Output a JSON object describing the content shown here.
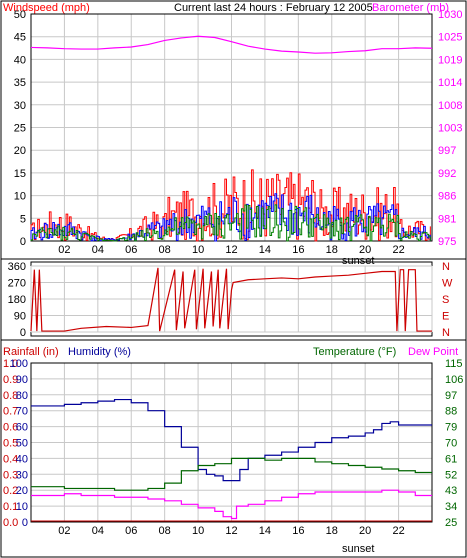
{
  "colors": {
    "frame": "#000000",
    "grid": "#c8c8c8",
    "background": "#ffffff",
    "wind_gust": "#ff0000",
    "wind_speed": "#0000ff",
    "wind_avg": "#008000",
    "barometer": "#ff00ff",
    "direction": "#cc0000",
    "rainfall": "#cc0000",
    "humidity": "#000099",
    "temperature": "#006600",
    "dew_point": "#ff00ff",
    "tick_label": "#000000"
  },
  "chart_data": [
    {
      "type": "line",
      "panel": "wind-barometer",
      "title": "Current last 24 hours : February 12 2005",
      "ylabel_left": "Windspeed (mph)",
      "ylabel_right": "Barometer (mb)",
      "x_ticks": [
        "02",
        "04",
        "06",
        "08",
        "10",
        "12",
        "14",
        "16",
        "18",
        "20",
        "22"
      ],
      "x_marker": "sunset",
      "y_left_ticks": [
        "0",
        "5",
        "10",
        "15",
        "20",
        "25",
        "30",
        "35",
        "40",
        "45",
        "50"
      ],
      "y_right_ticks": [
        "975",
        "981",
        "986",
        "992",
        "997",
        "1003",
        "1008",
        "1014",
        "1019",
        "1025",
        "1030"
      ],
      "ylim_left": [
        0,
        50
      ],
      "ylim_right": [
        975,
        1030
      ],
      "grid": true,
      "series": [
        {
          "values": [
            {
              "x": 0,
              "y": 1021.9
            },
            {
              "x": 1,
              "y": 1021.8
            },
            {
              "x": 2,
              "y": 1021.6
            },
            {
              "x": 3,
              "y": 1021.5
            },
            {
              "x": 4,
              "y": 1021.5
            },
            {
              "x": 5,
              "y": 1021.8
            },
            {
              "x": 6,
              "y": 1022.0
            },
            {
              "x": 7,
              "y": 1022.6
            },
            {
              "x": 8,
              "y": 1023.6
            },
            {
              "x": 9,
              "y": 1024.2
            },
            {
              "x": 10,
              "y": 1024.6
            },
            {
              "x": 11,
              "y": 1024.3
            },
            {
              "x": 12,
              "y": 1023.3
            },
            {
              "x": 13,
              "y": 1022.2
            },
            {
              "x": 14,
              "y": 1021.5
            },
            {
              "x": 15,
              "y": 1021.0
            },
            {
              "x": 16,
              "y": 1020.8
            },
            {
              "x": 17,
              "y": 1020.5
            },
            {
              "x": 18,
              "y": 1020.6
            },
            {
              "x": 19,
              "y": 1020.9
            },
            {
              "x": 20,
              "y": 1021.1
            },
            {
              "x": 21,
              "y": 1021.6
            },
            {
              "x": 22,
              "y": 1021.6
            },
            {
              "x": 23,
              "y": 1021.8
            },
            {
              "x": 24,
              "y": 1021.7
            }
          ]
        }
      ]
    },
    {
      "type": "line",
      "panel": "wind-direction",
      "y_left_ticks": [
        "0",
        "90",
        "180",
        "270",
        "360"
      ],
      "y_right_ticks": [
        "N",
        "E",
        "S",
        "W",
        "N"
      ],
      "ylim": [
        0,
        360
      ],
      "series": [
        {
          "values": [
            {
              "x": 0,
              "y": 5
            },
            {
              "x": 0.2,
              "y": 340
            },
            {
              "x": 0.35,
              "y": 5
            },
            {
              "x": 0.5,
              "y": 340
            },
            {
              "x": 0.65,
              "y": 5
            },
            {
              "x": 2,
              "y": 5
            },
            {
              "x": 3,
              "y": 20
            },
            {
              "x": 4.5,
              "y": 30
            },
            {
              "x": 6,
              "y": 25
            },
            {
              "x": 7,
              "y": 35
            },
            {
              "x": 7.6,
              "y": 350
            },
            {
              "x": 7.7,
              "y": 5
            },
            {
              "x": 8.6,
              "y": 340
            },
            {
              "x": 8.7,
              "y": 10
            },
            {
              "x": 9.1,
              "y": 330
            },
            {
              "x": 9.2,
              "y": 20
            },
            {
              "x": 9.8,
              "y": 340
            },
            {
              "x": 9.9,
              "y": 15
            },
            {
              "x": 10.3,
              "y": 345
            },
            {
              "x": 10.4,
              "y": 20
            },
            {
              "x": 10.8,
              "y": 330
            },
            {
              "x": 10.9,
              "y": 30
            },
            {
              "x": 11.2,
              "y": 340
            },
            {
              "x": 11.3,
              "y": 20
            },
            {
              "x": 11.7,
              "y": 345
            },
            {
              "x": 11.8,
              "y": 15
            },
            {
              "x": 12.0,
              "y": 230
            },
            {
              "x": 12.1,
              "y": 270
            },
            {
              "x": 13,
              "y": 285
            },
            {
              "x": 14,
              "y": 290
            },
            {
              "x": 15,
              "y": 295
            },
            {
              "x": 16,
              "y": 290
            },
            {
              "x": 17,
              "y": 300
            },
            {
              "x": 18,
              "y": 305
            },
            {
              "x": 19,
              "y": 310
            },
            {
              "x": 20,
              "y": 320
            },
            {
              "x": 21,
              "y": 330
            },
            {
              "x": 21.8,
              "y": 330
            },
            {
              "x": 21.9,
              "y": 5
            },
            {
              "x": 22.1,
              "y": 340
            },
            {
              "x": 22.3,
              "y": 340
            },
            {
              "x": 22.4,
              "y": 5
            },
            {
              "x": 22.6,
              "y": 340
            },
            {
              "x": 23.0,
              "y": 340
            },
            {
              "x": 23.1,
              "y": 5
            },
            {
              "x": 24,
              "y": 5
            }
          ]
        }
      ]
    },
    {
      "type": "line",
      "panel": "rain-humidity-temperature",
      "ylabel_rain": "Rainfall (in)",
      "ylabel_humidity": "Humidity (%)",
      "ylabel_temperature": "Temperature (°F)",
      "ylabel_dewpoint": "Dew Point",
      "x_ticks": [
        "02",
        "04",
        "06",
        "08",
        "10",
        "12",
        "14",
        "16",
        "18",
        "20",
        "22"
      ],
      "x_marker": "sunset",
      "y_rain_ticks": [
        "0.0",
        "0.1",
        "0.2",
        "0.3",
        "0.4",
        "0.5",
        "0.6",
        "0.7",
        "0.8",
        "0.9",
        "1.0"
      ],
      "y_humidity_ticks": [
        "0",
        "10",
        "20",
        "30",
        "40",
        "50",
        "60",
        "70",
        "80",
        "90",
        "100"
      ],
      "y_temp_ticks": [
        "25",
        "34",
        "43",
        "52",
        "61",
        "70",
        "79",
        "88",
        "97",
        "106",
        "115"
      ],
      "ylim_humidity": [
        0,
        100
      ],
      "ylim_temperature": [
        25,
        115
      ],
      "grid": true,
      "series": [
        {
          "values": [
            {
              "x": 0,
              "y": 73
            },
            {
              "x": 1,
              "y": 73
            },
            {
              "x": 2,
              "y": 74
            },
            {
              "x": 3,
              "y": 75
            },
            {
              "x": 4,
              "y": 76
            },
            {
              "x": 5,
              "y": 77
            },
            {
              "x": 6,
              "y": 75
            },
            {
              "x": 7,
              "y": 70
            },
            {
              "x": 8,
              "y": 60
            },
            {
              "x": 9,
              "y": 47
            },
            {
              "x": 10,
              "y": 33
            },
            {
              "x": 10.5,
              "y": 30
            },
            {
              "x": 11,
              "y": 29
            },
            {
              "x": 11.5,
              "y": 26
            },
            {
              "x": 12,
              "y": 26
            },
            {
              "x": 12.5,
              "y": 33
            },
            {
              "x": 13,
              "y": 40
            },
            {
              "x": 14,
              "y": 42
            },
            {
              "x": 15,
              "y": 44
            },
            {
              "x": 16,
              "y": 47
            },
            {
              "x": 17,
              "y": 50
            },
            {
              "x": 18,
              "y": 53
            },
            {
              "x": 19,
              "y": 54
            },
            {
              "x": 20,
              "y": 56
            },
            {
              "x": 20.5,
              "y": 58
            },
            {
              "x": 21,
              "y": 62
            },
            {
              "x": 21.5,
              "y": 63
            },
            {
              "x": 22,
              "y": 61
            },
            {
              "x": 24,
              "y": 61
            }
          ]
        },
        {
          "values": [
            {
              "x": 0,
              "y": 45
            },
            {
              "x": 1,
              "y": 45
            },
            {
              "x": 2,
              "y": 44
            },
            {
              "x": 3,
              "y": 44
            },
            {
              "x": 4,
              "y": 44
            },
            {
              "x": 5,
              "y": 43
            },
            {
              "x": 6,
              "y": 43
            },
            {
              "x": 7,
              "y": 44
            },
            {
              "x": 8,
              "y": 47
            },
            {
              "x": 9,
              "y": 54
            },
            {
              "x": 10,
              "y": 57
            },
            {
              "x": 11,
              "y": 58
            },
            {
              "x": 12,
              "y": 61
            },
            {
              "x": 13,
              "y": 61
            },
            {
              "x": 14,
              "y": 60
            },
            {
              "x": 15,
              "y": 61
            },
            {
              "x": 16,
              "y": 61
            },
            {
              "x": 17,
              "y": 59
            },
            {
              "x": 18,
              "y": 58
            },
            {
              "x": 19,
              "y": 57
            },
            {
              "x": 20,
              "y": 56
            },
            {
              "x": 21,
              "y": 55
            },
            {
              "x": 22,
              "y": 54
            },
            {
              "x": 23,
              "y": 53
            },
            {
              "x": 24,
              "y": 53
            }
          ]
        },
        {
          "values": [
            {
              "x": 0,
              "y": 40
            },
            {
              "x": 1,
              "y": 40
            },
            {
              "x": 2,
              "y": 41
            },
            {
              "x": 3,
              "y": 40
            },
            {
              "x": 4,
              "y": 40
            },
            {
              "x": 5,
              "y": 39
            },
            {
              "x": 6,
              "y": 39
            },
            {
              "x": 7,
              "y": 38
            },
            {
              "x": 8,
              "y": 37
            },
            {
              "x": 9,
              "y": 35
            },
            {
              "x": 10,
              "y": 33
            },
            {
              "x": 11,
              "y": 31
            },
            {
              "x": 11.5,
              "y": 28
            },
            {
              "x": 12,
              "y": 27
            },
            {
              "x": 12.3,
              "y": 34
            },
            {
              "x": 13,
              "y": 35
            },
            {
              "x": 14,
              "y": 37
            },
            {
              "x": 15,
              "y": 39
            },
            {
              "x": 16,
              "y": 41
            },
            {
              "x": 17,
              "y": 42
            },
            {
              "x": 18,
              "y": 42
            },
            {
              "x": 19,
              "y": 42
            },
            {
              "x": 20,
              "y": 42
            },
            {
              "x": 21,
              "y": 43
            },
            {
              "x": 22,
              "y": 42
            },
            {
              "x": 23,
              "y": 40
            },
            {
              "x": 24,
              "y": 40
            }
          ]
        }
      ]
    }
  ]
}
